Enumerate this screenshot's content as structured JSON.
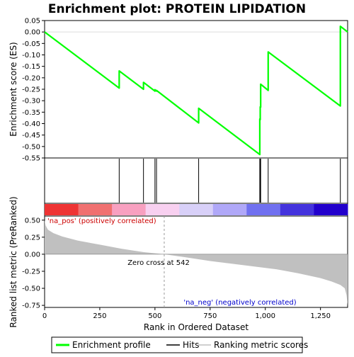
{
  "chart_data": {
    "type": "line",
    "title": "Enrichment plot: PROTEIN LIPIDATION",
    "top_panel": {
      "ylabel": "Enrichment score (ES)",
      "ylim": [
        -0.55,
        0.05
      ],
      "yticks": [
        0.05,
        0.0,
        -0.05,
        -0.1,
        -0.15,
        -0.2,
        -0.25,
        -0.3,
        -0.35,
        -0.4,
        -0.45,
        -0.5,
        -0.55
      ],
      "ytick_labels": [
        "0.05",
        "0.00",
        "-0.05",
        "-0.10",
        "-0.15",
        "-0.20",
        "-0.25",
        "-0.30",
        "-0.35",
        "-0.40",
        "-0.45",
        "-0.50",
        "-0.55"
      ],
      "series": [
        {
          "name": "Enrichment profile",
          "color": "#00ff00",
          "x": [
            0,
            338,
            338,
            448,
            448,
            500,
            500,
            507,
            507,
            698,
            698,
            975,
            975,
            977,
            977,
            979,
            979,
            1013,
            1013,
            1340,
            1340,
            1373
          ],
          "y": [
            0.0,
            -0.245,
            -0.17,
            -0.25,
            -0.22,
            -0.258,
            -0.252,
            -0.258,
            -0.255,
            -0.397,
            -0.333,
            -0.535,
            -0.38,
            -0.383,
            -0.327,
            -0.328,
            -0.228,
            -0.255,
            -0.087,
            -0.323,
            0.025,
            0.0
          ]
        }
      ]
    },
    "hits": {
      "name": "Hits",
      "color": "#000000",
      "x": [
        338,
        448,
        500,
        507,
        698,
        975,
        977,
        979,
        1013,
        1340
      ]
    },
    "bottom_panel": {
      "ylabel": "Ranked list metric (PreRanked)",
      "ylim": [
        -0.78,
        0.56
      ],
      "yticks": [
        0.5,
        0.25,
        0.0,
        -0.25,
        -0.5,
        -0.75
      ],
      "ytick_labels": [
        "0.50",
        "0.25",
        "0.00",
        "-0.25",
        "-0.50",
        "-0.75"
      ],
      "metric_profile": {
        "name": "Ranking metric scores",
        "color": "#c0c0c0",
        "x": [
          0,
          5,
          15,
          40,
          80,
          150,
          250,
          350,
          450,
          542,
          650,
          750,
          850,
          950,
          1050,
          1150,
          1250,
          1300,
          1340,
          1360,
          1368,
          1373
        ],
        "y": [
          0.5,
          0.42,
          0.36,
          0.31,
          0.26,
          0.2,
          0.14,
          0.08,
          0.03,
          0.0,
          -0.05,
          -0.1,
          -0.14,
          -0.18,
          -0.22,
          -0.28,
          -0.35,
          -0.4,
          -0.45,
          -0.5,
          -0.6,
          -0.75
        ]
      },
      "zero_cross": 542,
      "annotations": {
        "pos": "'na_pos' (positively correlated)",
        "neg": "'na_neg' (negatively correlated)",
        "zero": "Zero cross at 542"
      },
      "gradient_colors": [
        "#ee3333",
        "#f07070",
        "#f8a0c0",
        "#f8d0f0",
        "#d8d0f8",
        "#b0a8f8",
        "#7070f0",
        "#4433dd",
        "#2200cc"
      ]
    },
    "xlabel": "Rank in Ordered Dataset",
    "xlim": [
      0,
      1373
    ],
    "xticks": [
      0,
      250,
      500,
      750,
      1000,
      1250
    ],
    "xtick_labels": [
      "0",
      "250",
      "500",
      "750",
      "1,000",
      "1,250"
    ],
    "legend": {
      "placement": "bottom",
      "items": [
        {
          "label": "Enrichment profile",
          "color": "#00ff00"
        },
        {
          "label": "Hits",
          "color": "#000000"
        },
        {
          "label": "Ranking metric scores",
          "color": "#c0c0c0"
        }
      ]
    }
  }
}
